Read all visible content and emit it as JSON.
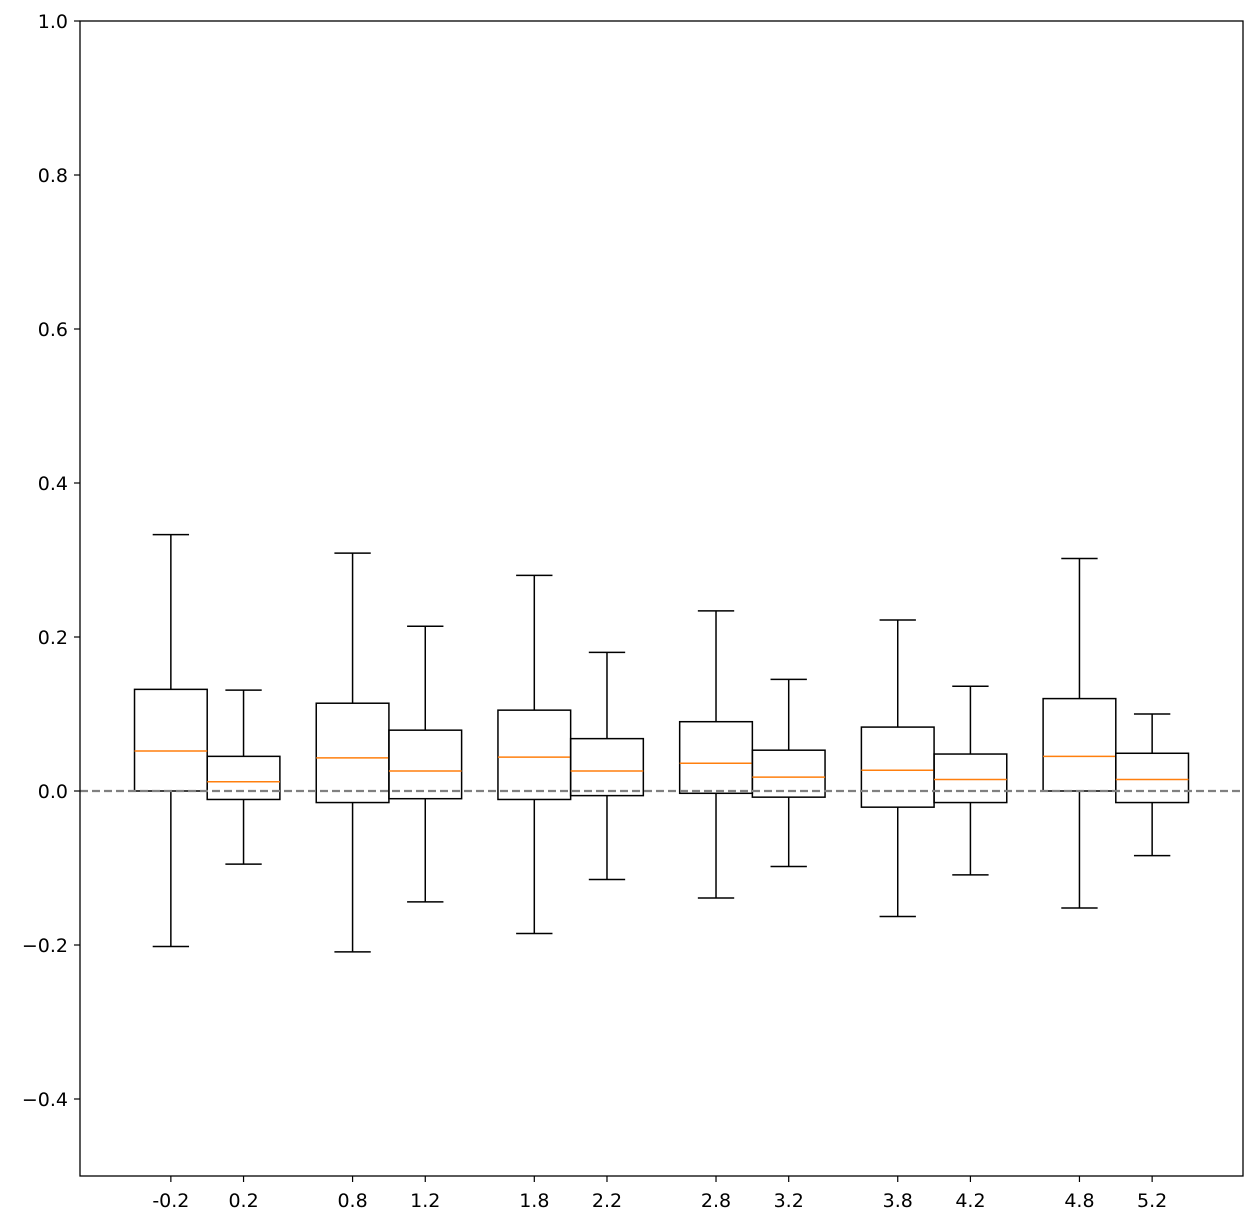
{
  "chart_data": {
    "type": "boxplot",
    "title": "",
    "xlabel": "",
    "ylabel": "",
    "ylim": [
      -0.5,
      1.0
    ],
    "xlim": [
      -0.7,
      5.7
    ],
    "box_width": 0.4,
    "y_ticks": [
      {
        "value": -0.4,
        "label": "−0.4"
      },
      {
        "value": -0.2,
        "label": "−0.2"
      },
      {
        "value": 0.0,
        "label": "0.0"
      },
      {
        "value": 0.2,
        "label": "0.2"
      },
      {
        "value": 0.4,
        "label": "0.4"
      },
      {
        "value": 0.6,
        "label": "0.6"
      },
      {
        "value": 0.8,
        "label": "0.8"
      },
      {
        "value": 1.0,
        "label": "1.0"
      }
    ],
    "x_ticks": [
      {
        "value": -0.2,
        "label": "-0.2"
      },
      {
        "value": 0.2,
        "label": "0.2"
      },
      {
        "value": 0.8,
        "label": "0.8"
      },
      {
        "value": 1.2,
        "label": "1.2"
      },
      {
        "value": 1.8,
        "label": "1.8"
      },
      {
        "value": 2.2,
        "label": "2.2"
      },
      {
        "value": 2.8,
        "label": "2.8"
      },
      {
        "value": 3.2,
        "label": "3.2"
      },
      {
        "value": 3.8,
        "label": "3.8"
      },
      {
        "value": 4.2,
        "label": "4.2"
      },
      {
        "value": 4.8,
        "label": "4.8"
      },
      {
        "value": 5.2,
        "label": "5.2"
      }
    ],
    "reference_line": {
      "y": 0.0,
      "style": "dashed",
      "color": "#808080"
    },
    "colors": {
      "box": "#000000",
      "median": "#ff7f0e",
      "whisker": "#000000"
    },
    "boxes": [
      {
        "x": -0.2,
        "whisker_low": -0.202,
        "q1": 0.0,
        "median": 0.052,
        "q3": 0.132,
        "whisker_high": 0.333
      },
      {
        "x": 0.2,
        "whisker_low": -0.095,
        "q1": -0.011,
        "median": 0.012,
        "q3": 0.045,
        "whisker_high": 0.131
      },
      {
        "x": 0.8,
        "whisker_low": -0.209,
        "q1": -0.015,
        "median": 0.043,
        "q3": 0.114,
        "whisker_high": 0.309
      },
      {
        "x": 1.2,
        "whisker_low": -0.144,
        "q1": -0.01,
        "median": 0.026,
        "q3": 0.079,
        "whisker_high": 0.214
      },
      {
        "x": 1.8,
        "whisker_low": -0.185,
        "q1": -0.011,
        "median": 0.044,
        "q3": 0.105,
        "whisker_high": 0.28
      },
      {
        "x": 2.2,
        "whisker_low": -0.115,
        "q1": -0.006,
        "median": 0.026,
        "q3": 0.068,
        "whisker_high": 0.18
      },
      {
        "x": 2.8,
        "whisker_low": -0.139,
        "q1": -0.003,
        "median": 0.036,
        "q3": 0.09,
        "whisker_high": 0.234
      },
      {
        "x": 3.2,
        "whisker_low": -0.098,
        "q1": -0.008,
        "median": 0.018,
        "q3": 0.053,
        "whisker_high": 0.145
      },
      {
        "x": 3.8,
        "whisker_low": -0.163,
        "q1": -0.021,
        "median": 0.027,
        "q3": 0.083,
        "whisker_high": 0.222
      },
      {
        "x": 4.2,
        "whisker_low": -0.109,
        "q1": -0.015,
        "median": 0.015,
        "q3": 0.048,
        "whisker_high": 0.136
      },
      {
        "x": 4.8,
        "whisker_low": -0.152,
        "q1": 0.0,
        "median": 0.045,
        "q3": 0.12,
        "whisker_high": 0.302
      },
      {
        "x": 5.2,
        "whisker_low": -0.084,
        "q1": -0.015,
        "median": 0.015,
        "q3": 0.049,
        "whisker_high": 0.1
      }
    ]
  }
}
